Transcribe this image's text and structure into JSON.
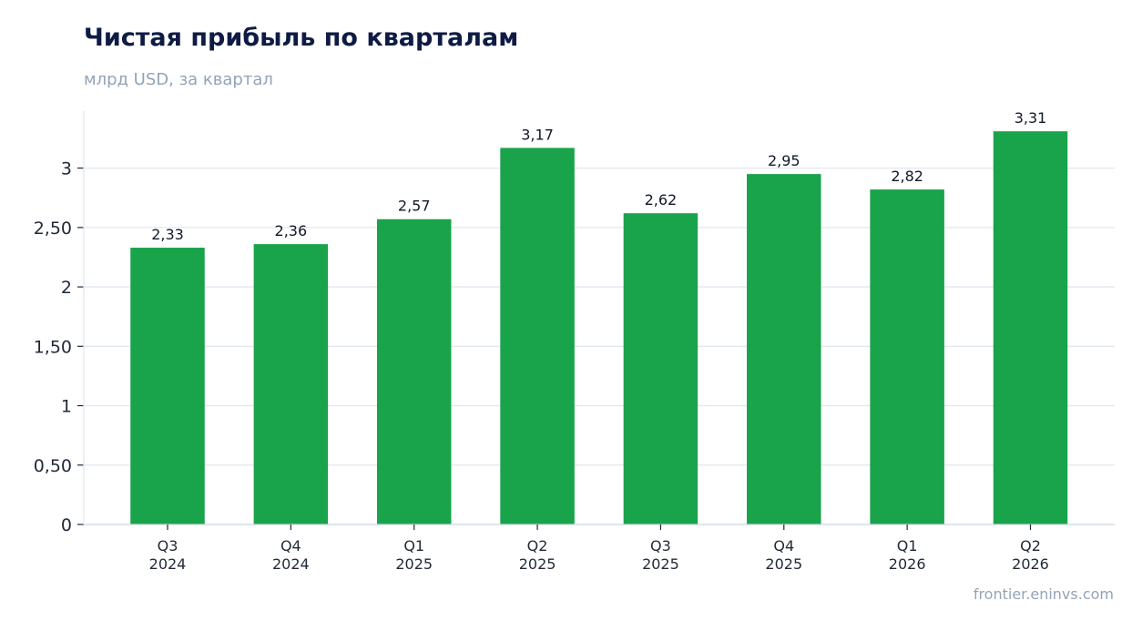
{
  "header": {
    "title": "Чистая прибыль по кварталам",
    "subtitle": "млрд USD, за квартал"
  },
  "footer": {
    "source": "frontier.eninvs.com"
  },
  "colors": {
    "bar": "#19a34a",
    "grid": "#e2e8f0",
    "axis": "#cbd5e1",
    "text": "#1f2937"
  },
  "chart_data": {
    "type": "bar",
    "categories": [
      [
        "Q3",
        "2024"
      ],
      [
        "Q4",
        "2024"
      ],
      [
        "Q1",
        "2025"
      ],
      [
        "Q2",
        "2025"
      ],
      [
        "Q3",
        "2025"
      ],
      [
        "Q4",
        "2025"
      ],
      [
        "Q1",
        "2026"
      ],
      [
        "Q2",
        "2026"
      ]
    ],
    "values": [
      2.33,
      2.36,
      2.57,
      3.17,
      2.62,
      2.95,
      2.82,
      3.31
    ],
    "value_labels": [
      "2,33",
      "2,36",
      "2,57",
      "3,17",
      "2,62",
      "2,95",
      "2,82",
      "3,31"
    ],
    "yticks": [
      0,
      0.5,
      1,
      1.5,
      2,
      2.5,
      3
    ],
    "ytick_labels": [
      "0",
      "0,50",
      "1",
      "1,50",
      "2",
      "2,50",
      "3"
    ],
    "ylim": [
      0,
      3.48
    ],
    "grid": true,
    "legend": false
  }
}
